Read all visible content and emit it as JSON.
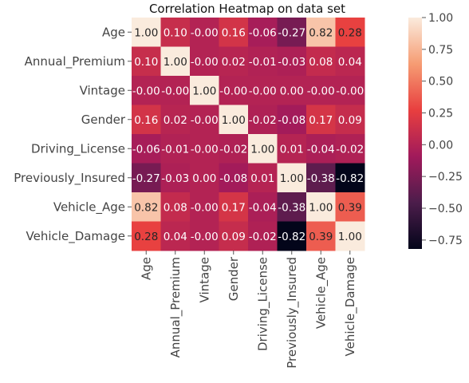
{
  "chart_data": {
    "type": "heatmap",
    "title": "Correlation Heatmap on data set",
    "xlabel": "",
    "ylabel": "",
    "rows": [
      "Age",
      "Annual_Premium",
      "Vintage",
      "Gender",
      "Driving_License",
      "Previously_Insured",
      "Vehicle_Age",
      "Vehicle_Damage"
    ],
    "cols": [
      "Age",
      "Annual_Premium",
      "Vintage",
      "Gender",
      "Driving_License",
      "Previously_Insured",
      "Vehicle_Age",
      "Vehicle_Damage"
    ],
    "values": [
      [
        1.0,
        0.1,
        -0.0,
        0.16,
        -0.06,
        -0.27,
        0.82,
        0.28
      ],
      [
        0.1,
        1.0,
        -0.0,
        0.02,
        -0.01,
        -0.03,
        0.08,
        0.04
      ],
      [
        -0.0,
        -0.0,
        1.0,
        -0.0,
        -0.0,
        0.0,
        -0.0,
        -0.0
      ],
      [
        0.16,
        0.02,
        -0.0,
        1.0,
        -0.02,
        -0.08,
        0.17,
        0.09
      ],
      [
        -0.06,
        -0.01,
        -0.0,
        -0.02,
        1.0,
        0.01,
        -0.04,
        -0.02
      ],
      [
        -0.27,
        -0.03,
        0.0,
        -0.08,
        0.01,
        1.0,
        -0.38,
        -0.82
      ],
      [
        0.82,
        0.08,
        -0.0,
        0.17,
        -0.04,
        -0.38,
        1.0,
        0.39
      ],
      [
        0.28,
        0.04,
        -0.0,
        0.09,
        -0.02,
        -0.82,
        0.39,
        1.0
      ]
    ],
    "labels": [
      [
        "1.00",
        "0.10",
        "-0.00",
        "0.16",
        "-0.06",
        "-0.27",
        "0.82",
        "0.28"
      ],
      [
        "0.10",
        "1.00",
        "-0.00",
        "0.02",
        "-0.01",
        "-0.03",
        "0.08",
        "0.04"
      ],
      [
        "-0.00",
        "-0.00",
        "1.00",
        "-0.00",
        "-0.00",
        "0.00",
        "-0.00",
        "-0.00"
      ],
      [
        "0.16",
        "0.02",
        "-0.00",
        "1.00",
        "-0.02",
        "-0.08",
        "0.17",
        "0.09"
      ],
      [
        "-0.06",
        "-0.01",
        "-0.00",
        "-0.02",
        "1.00",
        "0.01",
        "-0.04",
        "-0.02"
      ],
      [
        "-0.27",
        "-0.03",
        "0.00",
        "-0.08",
        "0.01",
        "1.00",
        "-0.38",
        "-0.82"
      ],
      [
        "0.82",
        "0.08",
        "-0.00",
        "0.17",
        "-0.04",
        "-0.38",
        "1.00",
        "0.39"
      ],
      [
        "0.28",
        "0.04",
        "-0.00",
        "0.09",
        "-0.02",
        "-0.82",
        "0.39",
        "1.00"
      ]
    ],
    "colorbar": {
      "range": [
        -0.82,
        1.0
      ],
      "ticks": [
        1.0,
        0.75,
        0.5,
        0.25,
        0.0,
        -0.25,
        -0.5,
        -0.75
      ],
      "tick_labels": [
        "1.00",
        "0.75",
        "0.50",
        "0.25",
        "0.00",
        "−0.25",
        "−0.50",
        "−0.75"
      ],
      "colormap": "rocket"
    },
    "colormap_stops": [
      "#03051a",
      "#4c1d4b",
      "#a11a5b",
      "#e83f3f",
      "#f69c73",
      "#faebdd"
    ]
  }
}
